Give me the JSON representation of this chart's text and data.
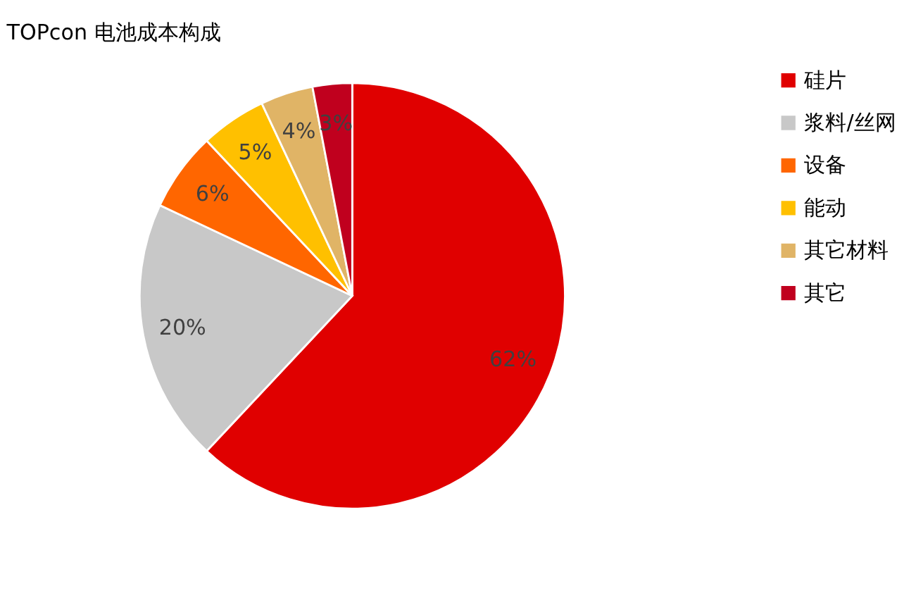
{
  "chart_data": {
    "type": "pie",
    "title": "TOPcon 电池成本构成",
    "categories": [
      "硅片",
      "浆料/丝网",
      "设备",
      "能动",
      "其它材料",
      "其它"
    ],
    "values": [
      62,
      20,
      6,
      5,
      4,
      3
    ],
    "colors": [
      "#e00000",
      "#c8c8c8",
      "#ff6600",
      "#ffc000",
      "#e0b466",
      "#c0001e"
    ],
    "value_labels": [
      "62%",
      "20%",
      "6%",
      "5%",
      "4%",
      "3%"
    ],
    "legend": "right"
  }
}
